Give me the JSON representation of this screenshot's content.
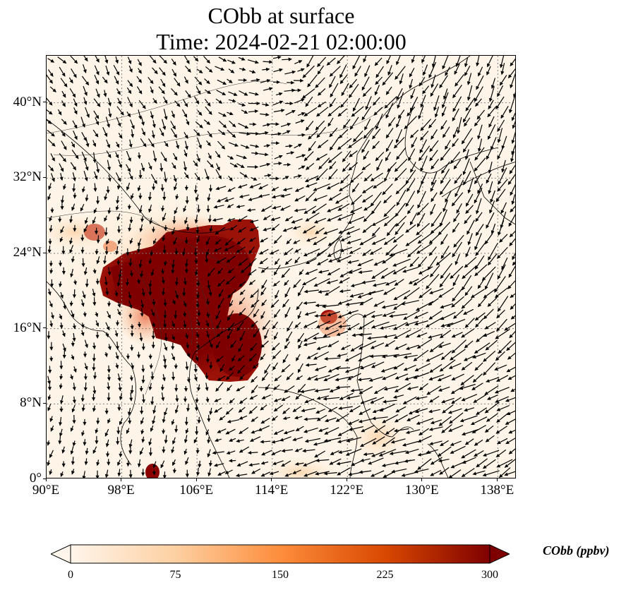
{
  "title": {
    "line1": "CObb at surface",
    "line2": "Time: 2024-02-21 02:00:00"
  },
  "map": {
    "lon_range": [
      90,
      140
    ],
    "lat_range": [
      0,
      45
    ],
    "x_ticks": [
      {
        "value": 90,
        "label": "90°E"
      },
      {
        "value": 98,
        "label": "98°E"
      },
      {
        "value": 106,
        "label": "106°E"
      },
      {
        "value": 114,
        "label": "114°E"
      },
      {
        "value": 122,
        "label": "122°E"
      },
      {
        "value": 130,
        "label": "130°E"
      },
      {
        "value": 138,
        "label": "138°E"
      }
    ],
    "y_ticks": [
      {
        "value": 0,
        "label": "0°"
      },
      {
        "value": 8,
        "label": "8°N"
      },
      {
        "value": 16,
        "label": "16°N"
      },
      {
        "value": 24,
        "label": "24°N"
      },
      {
        "value": 32,
        "label": "32°N"
      },
      {
        "value": 40,
        "label": "40°N"
      }
    ],
    "gridlines": "dotted",
    "field": "CObb concentration with wind vectors",
    "colors": {
      "background": "#fef5e8",
      "low": "#fdd9ae",
      "mid": "#f08a58",
      "high": "#c0301f",
      "max": "#7f0000"
    }
  },
  "colorbar": {
    "title": "CObb (ppbv)",
    "min": 0,
    "max": 300,
    "ticks": [
      {
        "value": 0,
        "label": "0"
      },
      {
        "value": 75,
        "label": "75"
      },
      {
        "value": 150,
        "label": "150"
      },
      {
        "value": 225,
        "label": "225"
      },
      {
        "value": 300,
        "label": "300"
      }
    ],
    "extend": "both",
    "colormap": [
      "#fff5eb",
      "#fdd0a2",
      "#fd8d3c",
      "#d94801",
      "#7f0000"
    ]
  }
}
